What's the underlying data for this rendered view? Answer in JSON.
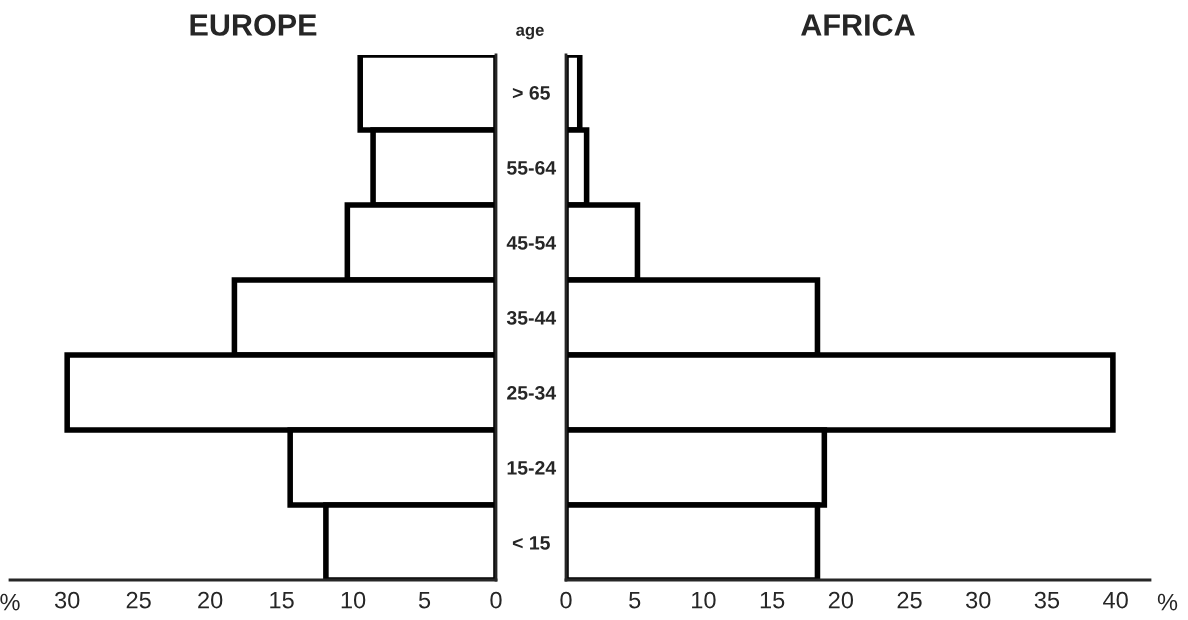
{
  "chart_data": [
    {
      "type": "bar",
      "orientation": "horizontal",
      "title": "EUROPE",
      "xlabel": "%",
      "categories": [
        null,
        null,
        null,
        null,
        null,
        null,
        null
      ],
      "values": [
        9.5,
        8.6,
        10.4,
        18.3,
        30,
        14.4,
        11.9
      ],
      "color": "#ffffff",
      "xlim": [
        34,
        0
      ],
      "xticks": [
        30,
        25,
        20,
        15,
        10,
        5,
        0
      ],
      "tick_labels": "x"
    },
    {
      "type": "bar",
      "orientation": "horizontal",
      "title": "AFRICA",
      "xlabel": "%",
      "ylabel": "age",
      "categories": [
        "> 65",
        "55-64",
        "45-54",
        "35-44",
        "25-34",
        "15-24",
        "< 15"
      ],
      "values": [
        1.0,
        1.5,
        5.2,
        18.3,
        39.8,
        18.8,
        18.3
      ],
      "color": "#ffffff",
      "xlim": [
        0,
        42.5
      ],
      "xticks": [
        0,
        5,
        10,
        15,
        20,
        25,
        30,
        35,
        40
      ]
    }
  ]
}
